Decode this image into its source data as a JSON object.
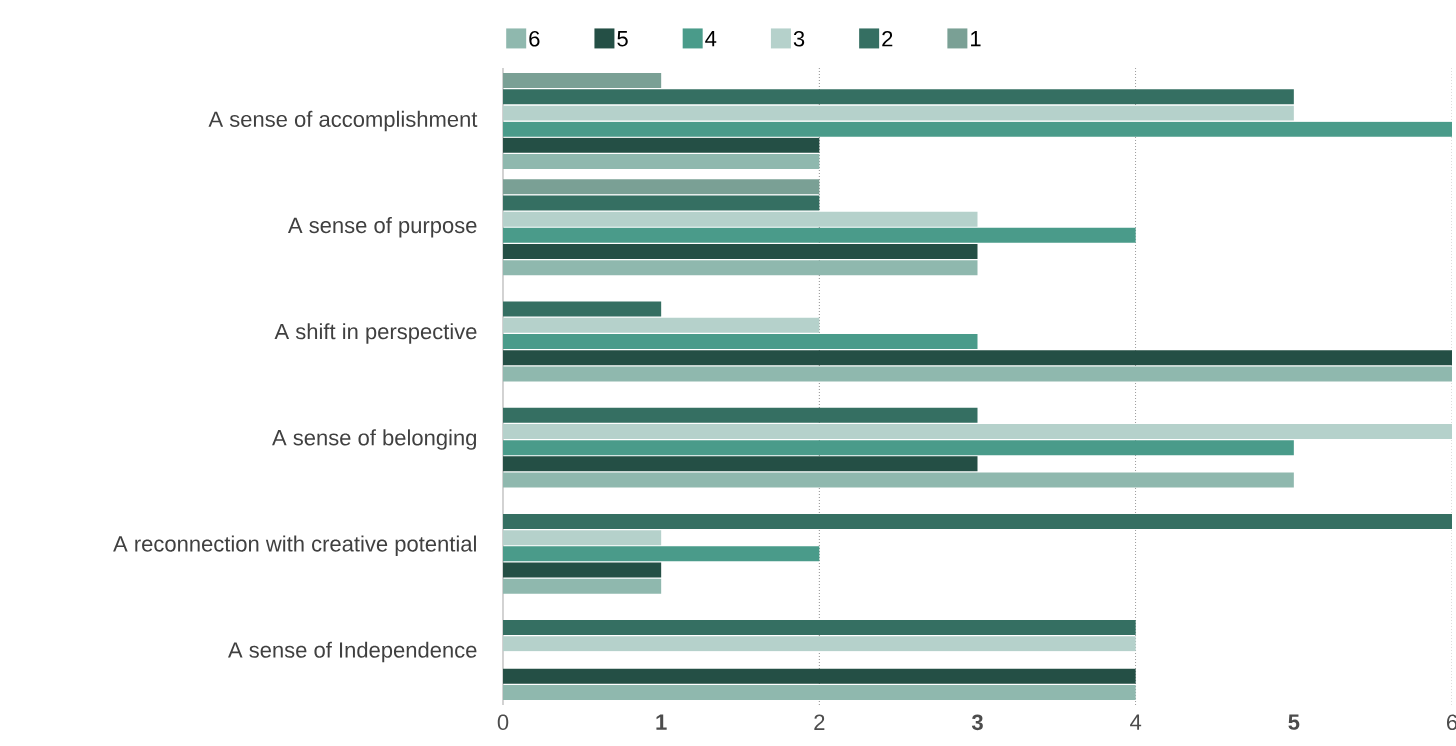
{
  "chart_data": {
    "type": "bar",
    "orientation": "horizontal",
    "categories": [
      "A sense of accomplishment",
      "A sense of purpose",
      "A shift in perspective",
      "A sense of belonging",
      "A reconnection with creative potential",
      "A sense of Independence"
    ],
    "series": [
      {
        "name": "6",
        "color": "#8fb8ae",
        "values": [
          2,
          3,
          6,
          5,
          1,
          4
        ]
      },
      {
        "name": "5",
        "color": "#244f45",
        "values": [
          2,
          3,
          6,
          3,
          1,
          4
        ]
      },
      {
        "name": "4",
        "color": "#4a9b8a",
        "values": [
          6,
          4,
          3,
          5,
          2,
          null
        ]
      },
      {
        "name": "3",
        "color": "#b5d1cb",
        "values": [
          5,
          3,
          2,
          6,
          1,
          4
        ]
      },
      {
        "name": "2",
        "color": "#356f62",
        "values": [
          5,
          2,
          1,
          3,
          6,
          4
        ]
      },
      {
        "name": "1",
        "color": "#7aa095",
        "values": [
          1,
          2,
          null,
          null,
          null,
          null
        ]
      }
    ],
    "xlim": [
      0,
      6
    ],
    "xticks": [
      0,
      {
        "value": 1,
        "label": "**1**"
      },
      2,
      {
        "value": 3,
        "label": "**3**"
      },
      4,
      {
        "value": 5,
        "label": "**5**"
      },
      6
    ],
    "grid": "x",
    "legend": "top"
  }
}
